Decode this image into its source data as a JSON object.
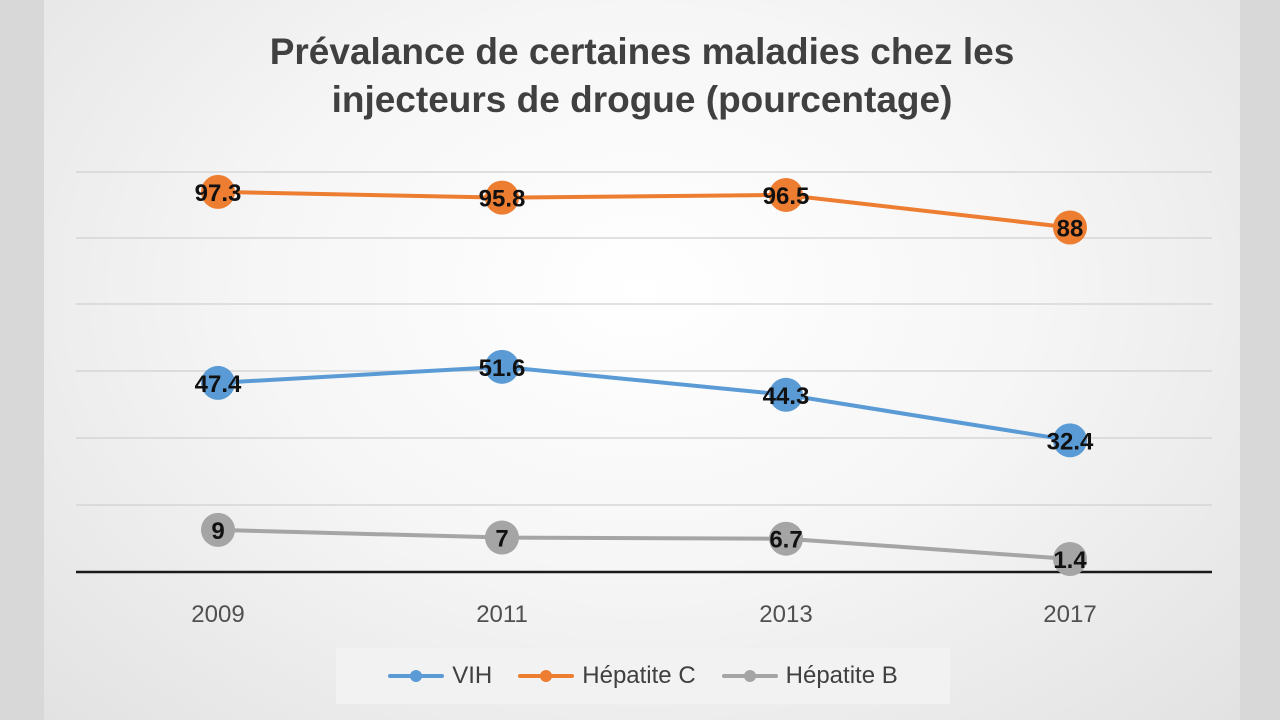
{
  "chart_data": {
    "type": "line",
    "title_lines": [
      "Prévalance de certaines maladies chez les",
      "injecteurs de drogue (pourcentage)"
    ],
    "categories": [
      "2009",
      "2011",
      "2013",
      "2017"
    ],
    "series": [
      {
        "name": "VIH",
        "color": "#5b9bd5",
        "values": [
          47.4,
          51.6,
          44.3,
          32.4
        ],
        "labels": [
          "47.4",
          "51.6",
          "44.3",
          "32.4"
        ]
      },
      {
        "name": "Hépatite C",
        "color": "#ed7d31",
        "values": [
          97.3,
          95.8,
          96.5,
          88
        ],
        "labels": [
          "97.3",
          "95.8",
          "96.5",
          "88"
        ]
      },
      {
        "name": "Hépatite B",
        "color": "#a5a5a5",
        "values": [
          9,
          7,
          6.7,
          1.4
        ],
        "labels": [
          "9",
          "7",
          "6.7",
          "1.4"
        ]
      }
    ],
    "ylim": [
      -2,
      120
    ],
    "grid": true,
    "legend": "bottom"
  }
}
